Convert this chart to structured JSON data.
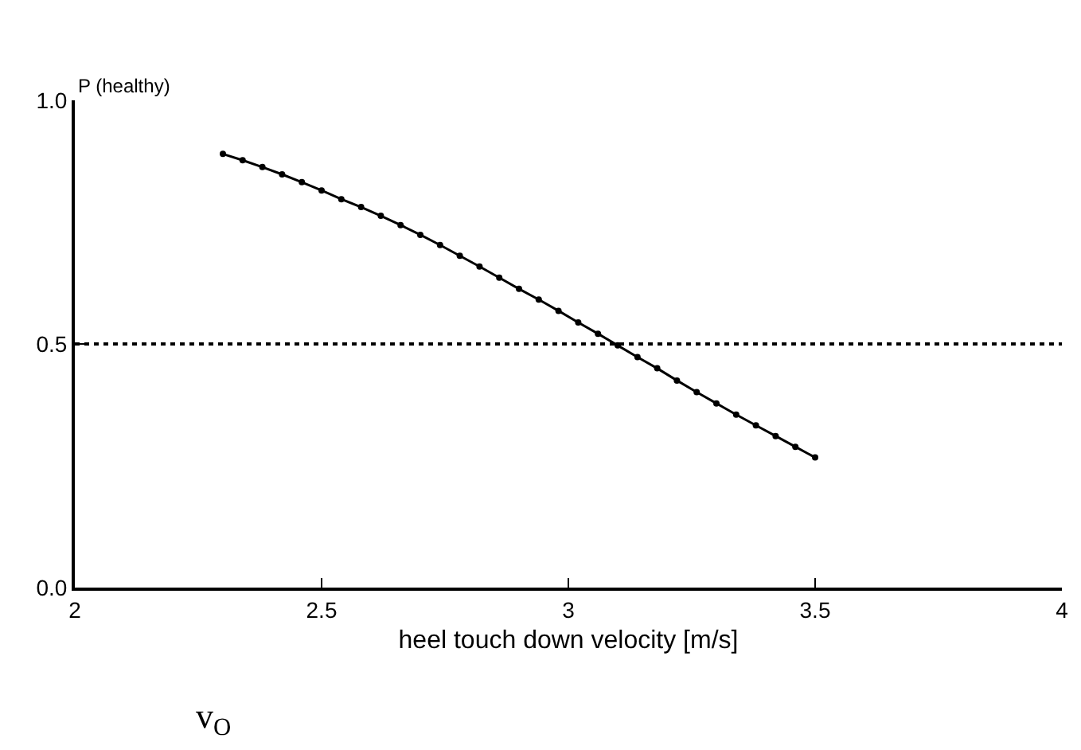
{
  "chart_data": {
    "type": "line",
    "ylabel": "P (healthy)",
    "xlabel": "heel touch down velocity [m/s]",
    "annotations": [
      "v$_{O}$"
    ],
    "x": [
      2.3,
      2.34,
      2.38,
      2.42,
      2.46,
      2.5,
      2.54,
      2.58,
      2.62,
      2.66,
      2.7,
      2.74,
      2.78,
      2.82,
      2.86,
      2.9,
      2.94,
      2.98,
      3.02,
      3.06,
      3.1,
      3.14,
      3.18,
      3.22,
      3.26,
      3.3,
      3.34,
      3.38,
      3.42,
      3.46,
      3.5
    ],
    "series": [
      {
        "color": "#000000",
        "values": [
          0.89,
          0.877,
          0.863,
          0.848,
          0.832,
          0.815,
          0.797,
          0.781,
          0.763,
          0.744,
          0.724,
          0.703,
          0.681,
          0.659,
          0.636,
          0.613,
          0.591,
          0.568,
          0.544,
          0.521,
          0.497,
          0.473,
          0.45,
          0.425,
          0.401,
          0.378,
          0.355,
          0.333,
          0.311,
          0.289,
          0.267
        ]
      }
    ],
    "xlim": [
      2,
      4
    ],
    "xticks": [
      2,
      2.5,
      3,
      3.5,
      4
    ],
    "ylim": [
      0,
      1
    ],
    "yticks": [
      {
        "value": 0,
        "label": "0.0"
      },
      {
        "value": 0.5,
        "label": "0.5"
      },
      {
        "value": 1,
        "label": "1.0"
      }
    ],
    "ref_lines": [
      {
        "axis": "y",
        "value": 0.5,
        "line_style": "dotted",
        "color": "#000000"
      }
    ],
    "grid": false,
    "marker": "circle",
    "line_style": "solid"
  }
}
